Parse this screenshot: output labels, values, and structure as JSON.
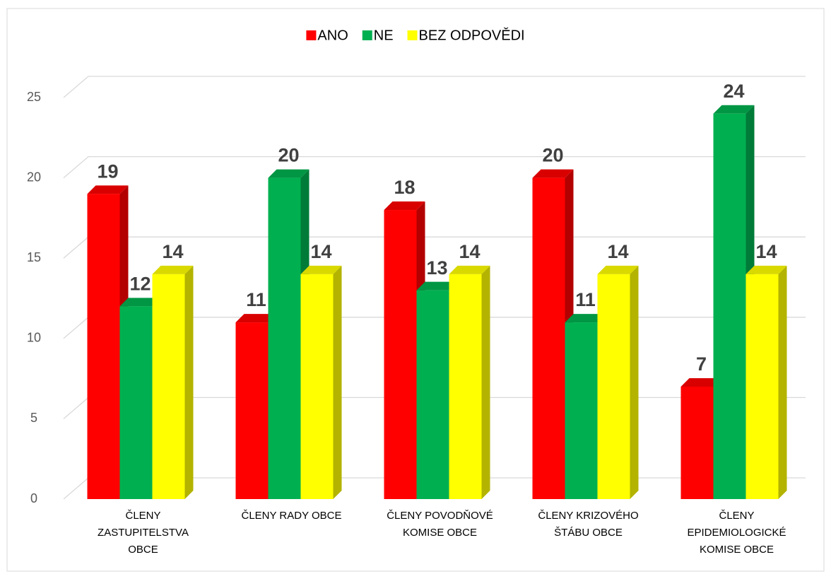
{
  "chart_data": {
    "type": "bar3d",
    "categories": [
      "ČLENY\nZASTUPITELSTVA\nOBCE",
      "ČLENY RADY OBCE",
      "ČLENY POVODŇOVÉ\nKOMISE  OBCE",
      "ČLENY KRIZOVÉHO\nŠTÁBU OBCE",
      "ČLENY\nEPIDEMIOLOGICKÉ\nKOMISE OBCE"
    ],
    "series": [
      {
        "name": "ANO",
        "color": "#ff0000",
        "values": [
          19,
          11,
          18,
          20,
          7
        ]
      },
      {
        "name": "NE",
        "color": "#00b050",
        "values": [
          12,
          20,
          13,
          11,
          24
        ]
      },
      {
        "name": "BEZ ODPOVĚDI",
        "color": "#ffff00",
        "values": [
          14,
          14,
          14,
          14,
          14
        ]
      }
    ],
    "ylim": [
      0,
      25
    ],
    "yticks": [
      0,
      5,
      10,
      15,
      20,
      25
    ],
    "grid": true,
    "legend": "top"
  }
}
